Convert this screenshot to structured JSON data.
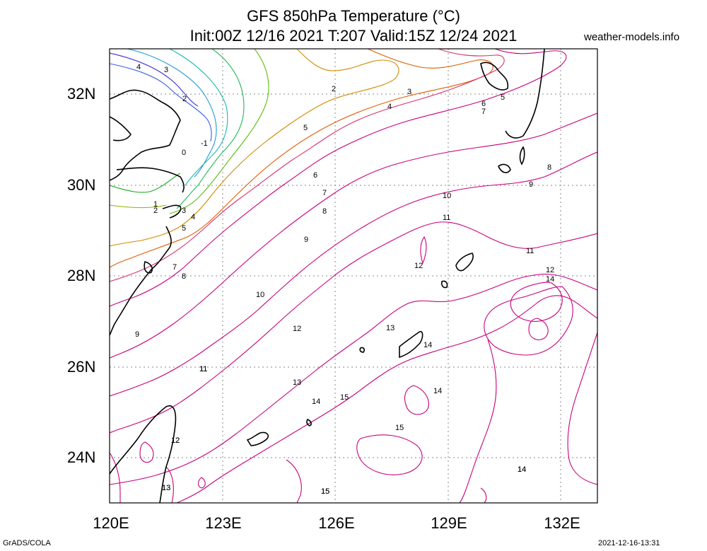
{
  "header": {
    "title_line1": "GFS 850hPa Temperature (°C)",
    "title_line2": "Init:00Z 12/16 2021 T:207 Valid:15Z 12/24 2021",
    "credit": "weather-models.info"
  },
  "footer": {
    "left": "GrADS/COLA",
    "right": "2021-12-16-13:31"
  },
  "map": {
    "lat_labels": [
      "32N",
      "30N",
      "28N",
      "26N",
      "24N"
    ],
    "lon_labels": [
      "120E",
      "123E",
      "126E",
      "129E",
      "132E"
    ],
    "grid": "dotted",
    "contour_labels": [
      "4",
      "3",
      "2",
      "-1",
      "0",
      "1",
      "2",
      "3",
      "4",
      "5",
      "2",
      "3",
      "4",
      "5",
      "6",
      "7",
      "8",
      "9",
      "10",
      "11",
      "12",
      "13",
      "14",
      "15",
      "5",
      "6",
      "7",
      "8",
      "9",
      "10",
      "11",
      "11",
      "12",
      "12",
      "14",
      "13",
      "14",
      "14",
      "12",
      "11",
      "13",
      "14",
      "15",
      "15",
      "14",
      "12",
      "13",
      "9",
      "7",
      "8",
      "15"
    ]
  },
  "colors": {
    "warm_contour": "#c8007d",
    "coast": "#000000",
    "grid": "#888888"
  }
}
